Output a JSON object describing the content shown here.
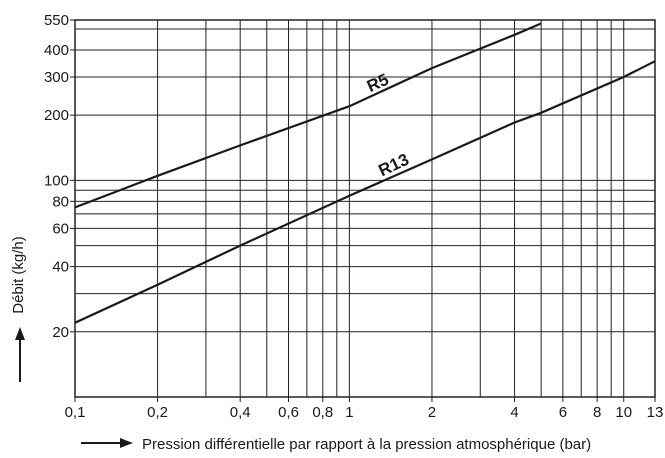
{
  "chart_data": {
    "type": "line",
    "title": "",
    "xlabel": "Pression différentielle par rapport à la pression atmosphérique (bar)",
    "ylabel": "Débit (kg/h)",
    "x_scale": "log",
    "y_scale": "log",
    "xlim": [
      0.1,
      13
    ],
    "ylim": [
      10,
      550
    ],
    "grid": true,
    "x_ticks": [
      "0,1",
      "0,2",
      "0,4",
      "0,6",
      "0,8",
      "1",
      "2",
      "4",
      "6",
      "8",
      "10",
      "13"
    ],
    "y_ticks": [
      "20",
      "40",
      "60",
      "80",
      "100",
      "200",
      "300",
      "400",
      "550"
    ],
    "series": [
      {
        "name": "R5",
        "x": [
          0.1,
          0.2,
          0.4,
          1,
          2,
          4,
          5
        ],
        "y": [
          75,
          105,
          145,
          220,
          330,
          470,
          530
        ]
      },
      {
        "name": "R13",
        "x": [
          0.1,
          0.2,
          0.4,
          1,
          2,
          4,
          5,
          10,
          13
        ],
        "y": [
          22,
          33,
          50,
          85,
          125,
          185,
          205,
          300,
          355
        ]
      }
    ],
    "colors": {
      "line": "#1a1a1a",
      "grid": "#222222",
      "background": "#ffffff"
    }
  }
}
